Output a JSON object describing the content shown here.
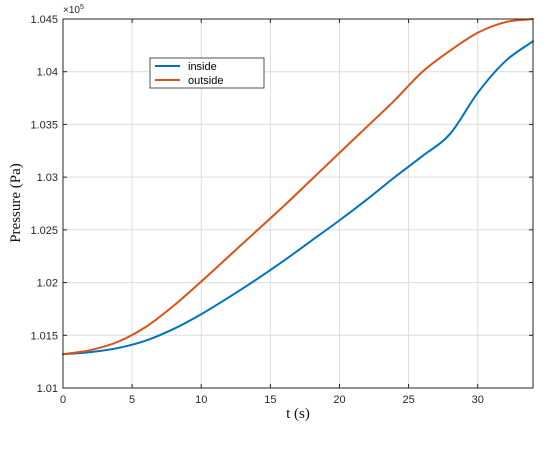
{
  "chart_data": {
    "type": "line",
    "xlabel": "t (s)",
    "ylabel": "Pressure (Pa)",
    "exponent_label": "×10",
    "exponent_power": "5",
    "xlim": [
      0,
      34
    ],
    "ylim": [
      1.01,
      1.045
    ],
    "xticks": [
      0,
      5,
      10,
      15,
      20,
      25,
      30
    ],
    "xtick_labels": [
      "0",
      "5",
      "10",
      "15",
      "20",
      "25",
      "30"
    ],
    "yticks": [
      1.01,
      1.015,
      1.02,
      1.025,
      1.03,
      1.035,
      1.04,
      1.045
    ],
    "ytick_labels": [
      "1.01",
      "1.015",
      "1.02",
      "1.025",
      "1.03",
      "1.035",
      "1.04",
      "1.045"
    ],
    "grid": true,
    "legend_position": "top-left",
    "series": [
      {
        "name": "inside",
        "color": "#0072BD",
        "x": [
          0,
          2,
          4,
          6,
          8,
          10,
          12,
          14,
          16,
          18,
          20,
          22,
          24,
          26,
          28,
          30,
          32,
          34
        ],
        "y": [
          1.0132,
          1.0134,
          1.0138,
          1.0145,
          1.0156,
          1.017,
          1.0186,
          1.0203,
          1.0221,
          1.024,
          1.0259,
          1.0279,
          1.03,
          1.032,
          1.0341,
          1.038,
          1.041,
          1.0429
        ]
      },
      {
        "name": "outside",
        "color": "#D95319",
        "x": [
          0,
          2,
          4,
          6,
          8,
          10,
          12,
          14,
          16,
          18,
          20,
          22,
          24,
          26,
          28,
          30,
          32,
          34
        ],
        "y": [
          1.0132,
          1.0136,
          1.0144,
          1.0158,
          1.0178,
          1.0201,
          1.0225,
          1.0249,
          1.0273,
          1.0298,
          1.0323,
          1.0348,
          1.0373,
          1.04,
          1.042,
          1.0437,
          1.0447,
          1.045
        ]
      }
    ]
  }
}
